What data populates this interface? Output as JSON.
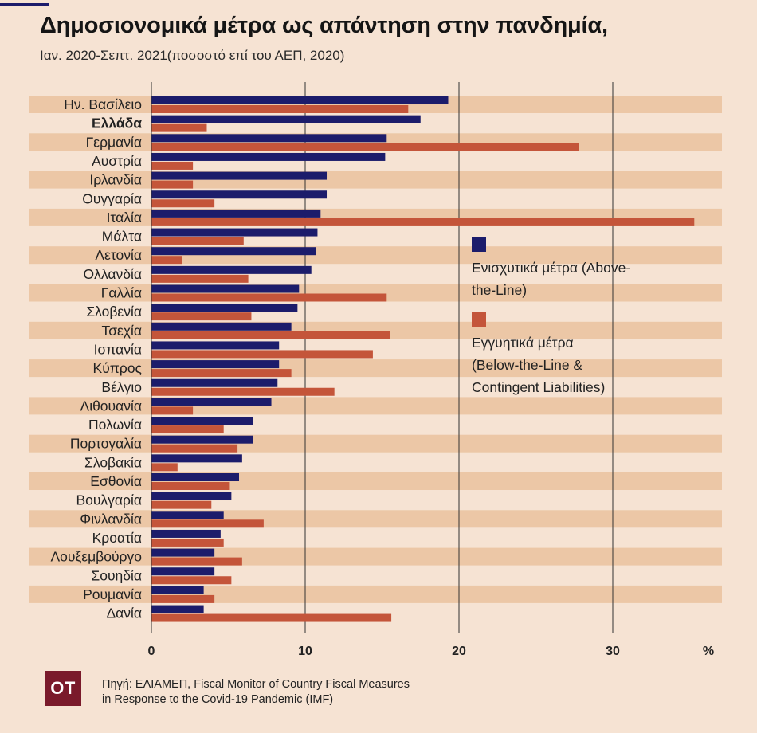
{
  "title": "Δημοσιονομικά μέτρα ως απάντηση στην πανδημία,",
  "subtitle": "Ιαν. 2020-Σεπτ. 2021(ποσοστό επί του ΑΕΠ, 2020)",
  "legend": {
    "above_line": "Ενισχυτικά μέτρα (Above-the-Line)",
    "below_line_1": "Εγγυητικά μέτρα",
    "below_line_2": "(Below-the-Line &",
    "below_line_3": "Contingent Liabilities)"
  },
  "source": {
    "line1": "Πηγή: ΕΛΙΑΜΕΠ, Fiscal Monitor of Country Fiscal Measures",
    "line2": "in Response to the Covid-19 Pandemic (IMF)"
  },
  "logo_text": "OT",
  "colors": {
    "background": "#f6e3d3",
    "stripe": "#ecc7a6",
    "above_line": "#1c1c6b",
    "below_line": "#c4553a",
    "gridline": "#333333"
  },
  "chart_data": {
    "type": "bar",
    "orientation": "horizontal",
    "unit": "%",
    "highlight": "Ελλάδα",
    "xlim": [
      0,
      37
    ],
    "xticks": [
      0,
      10,
      20,
      30
    ],
    "categories": [
      "Ην. Βασίλειο",
      "Ελλάδα",
      "Γερμανία",
      "Αυστρία",
      "Ιρλανδία",
      "Ουγγαρία",
      "Ιταλία",
      "Μάλτα",
      "Λετονία",
      "Ολλανδία",
      "Γαλλία",
      "Σλοβενία",
      "Τσεχία",
      "Ισπανία",
      "Κύπρος",
      "Βέλγιο",
      "Λιθουανία",
      "Πολωνία",
      "Πορτογαλία",
      "Σλοβακία",
      "Εσθονία",
      "Βουλγαρία",
      "Φινλανδία",
      "Κροατία",
      "Λουξεμβούργο",
      "Σουηδία",
      "Ρουμανία",
      "Δανία"
    ],
    "series": [
      {
        "name": "Ενισχυτικά μέτρα (Above-the-Line)",
        "values": [
          19.3,
          17.5,
          15.3,
          15.2,
          11.4,
          11.4,
          11.0,
          10.8,
          10.7,
          10.4,
          9.6,
          9.5,
          9.1,
          8.3,
          8.3,
          8.2,
          7.8,
          6.6,
          6.6,
          5.9,
          5.7,
          5.2,
          4.7,
          4.5,
          4.1,
          4.1,
          3.4,
          3.4
        ]
      },
      {
        "name": "Εγγυητικά μέτρα (Below-the-Line & Contingent Liabilities)",
        "values": [
          16.7,
          3.6,
          27.8,
          2.7,
          2.7,
          4.1,
          35.3,
          6.0,
          2.0,
          6.3,
          15.3,
          6.5,
          15.5,
          14.4,
          9.1,
          11.9,
          2.7,
          4.7,
          5.6,
          1.7,
          5.1,
          3.9,
          7.3,
          4.7,
          5.9,
          5.2,
          4.1,
          15.6
        ]
      }
    ]
  }
}
